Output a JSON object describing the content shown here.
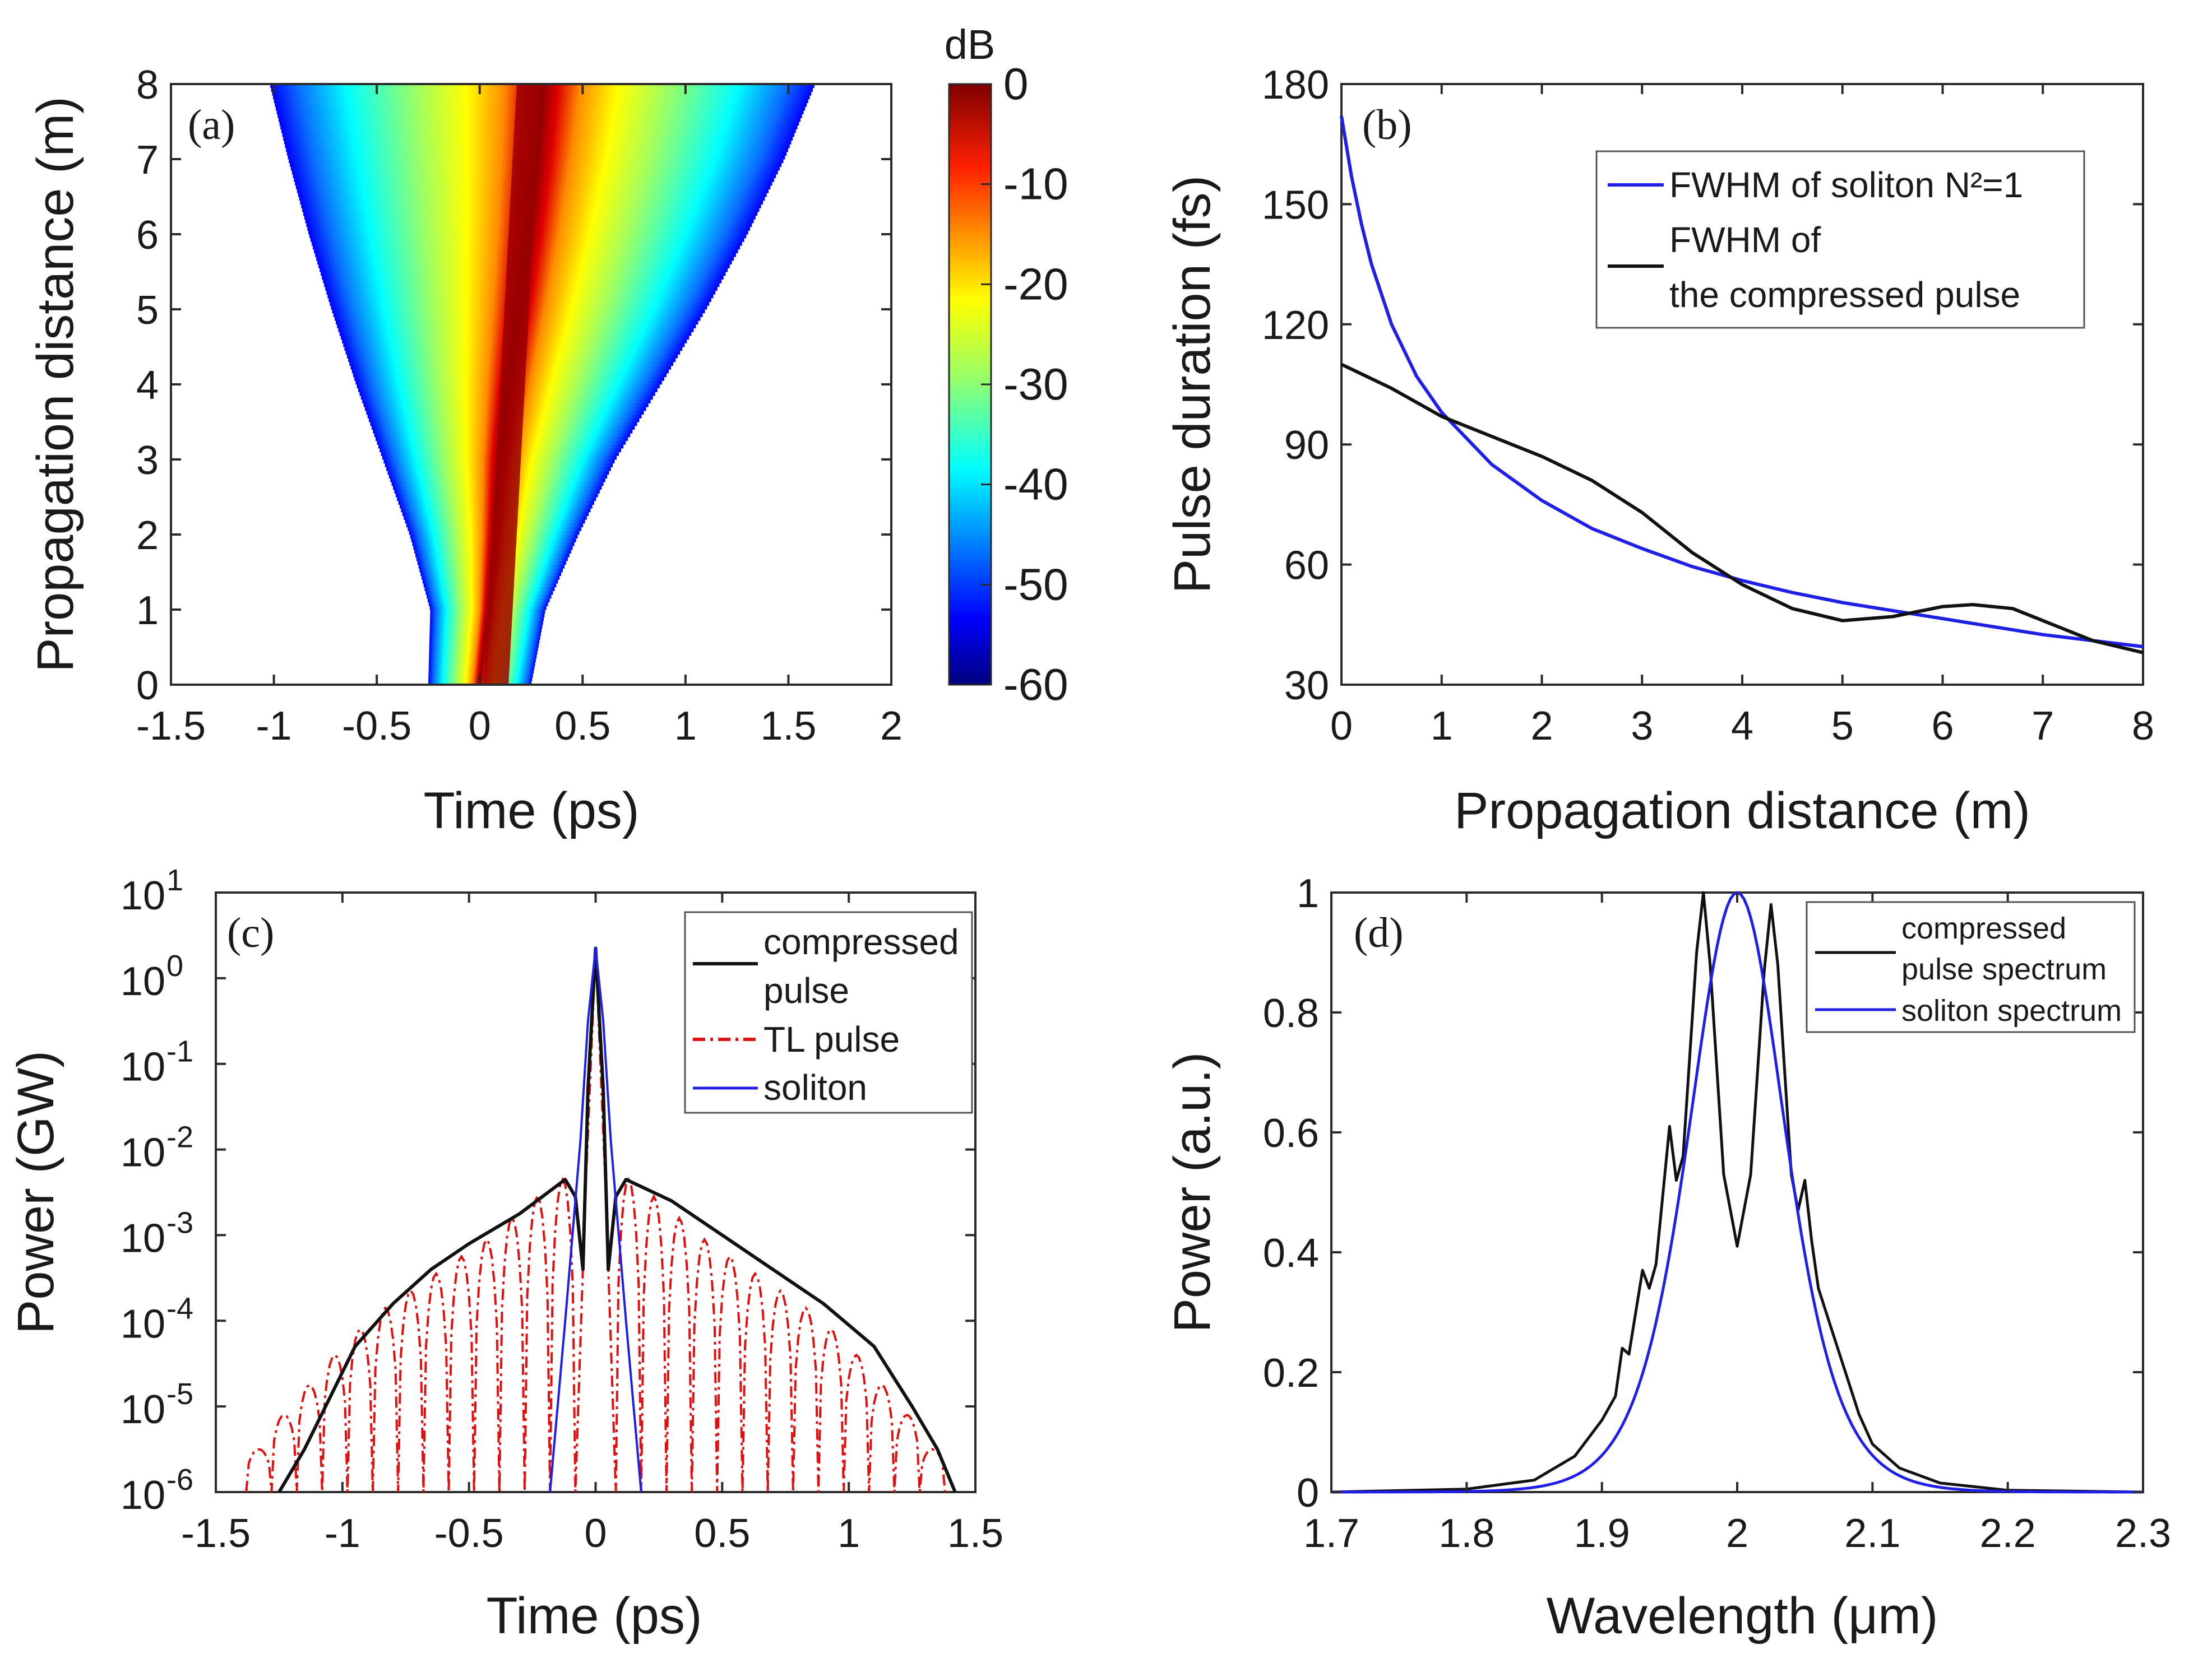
{
  "colors": {
    "blue": "#1f1fe6",
    "black": "#111111",
    "red": "#e01010",
    "axis": "#2a2a2a"
  },
  "chart_data": [
    {
      "id": "a",
      "type": "heatmap",
      "panel_label": "(a)",
      "xlabel": "Time (ps)",
      "ylabel": "Propagation distance (m)",
      "xlim": [
        -1.5,
        2
      ],
      "ylim": [
        0,
        8
      ],
      "xticks": [
        "-1.5",
        "-1",
        "-0.5",
        "0",
        "0.5",
        "1",
        "1.5",
        "2"
      ],
      "yticks": [
        "0",
        "1",
        "2",
        "3",
        "4",
        "5",
        "6",
        "7",
        "8"
      ],
      "colorbar": {
        "title": "dB",
        "range": [
          -60,
          0
        ],
        "ticks": [
          "0",
          "-10",
          "-20",
          "-30",
          "-40",
          "-50",
          "-60"
        ]
      },
      "field_edges": {
        "z": [
          0,
          1,
          2,
          3,
          4,
          5,
          6,
          7,
          8
        ],
        "left": [
          -0.25,
          -0.24,
          -0.34,
          -0.47,
          -0.6,
          -0.72,
          -0.83,
          -0.93,
          -1.02
        ],
        "right": [
          0.25,
          0.32,
          0.48,
          0.66,
          0.88,
          1.1,
          1.3,
          1.48,
          1.63
        ]
      },
      "core": {
        "center_start": 0.08,
        "center_end": 0.24,
        "width_ps": 0.12
      }
    },
    {
      "id": "b",
      "type": "line",
      "panel_label": "(b)",
      "xlabel": "Propagation distance (m)",
      "ylabel": "Pulse duration (fs)",
      "xlim": [
        0,
        8
      ],
      "ylim": [
        30,
        180
      ],
      "xticks": [
        "0",
        "1",
        "2",
        "3",
        "4",
        "5",
        "6",
        "7",
        "8"
      ],
      "yticks": [
        "30",
        "60",
        "90",
        "120",
        "150",
        "180"
      ],
      "legend": {
        "position": "top-right",
        "entries": [
          "FWHM of soliton N²=1",
          "FWHM of",
          "the compressed pulse"
        ]
      },
      "series": [
        {
          "name": "FWHM of soliton N²=1",
          "color": "blue",
          "x": [
            0,
            0.1,
            0.2,
            0.3,
            0.5,
            0.75,
            1,
            1.5,
            2,
            2.5,
            3,
            3.5,
            4,
            4.5,
            5,
            5.5,
            6,
            6.5,
            7,
            7.5,
            8
          ],
          "y": [
            172,
            157,
            145,
            135,
            120,
            107,
            98,
            85,
            76,
            69,
            64,
            59.5,
            56,
            53,
            50.5,
            48.5,
            46.5,
            44.5,
            42.5,
            41,
            39.5
          ]
        },
        {
          "name": "FWHM of the compressed pulse",
          "color": "black",
          "x": [
            0,
            0.5,
            1,
            1.5,
            2,
            2.5,
            3,
            3.5,
            4,
            4.5,
            5,
            5.5,
            6,
            6.3,
            6.7,
            7,
            7.5,
            8
          ],
          "y": [
            110,
            104,
            97,
            92,
            87,
            81,
            73,
            63,
            55,
            49,
            46,
            47,
            49.5,
            50,
            49,
            46,
            41,
            38
          ]
        }
      ]
    },
    {
      "id": "c",
      "type": "line",
      "panel_label": "(c)",
      "yscale": "log",
      "xlabel": "Time (ps)",
      "ylabel": "Power (GW)",
      "xlim": [
        -1.5,
        1.5
      ],
      "ylim_exp": [
        -6,
        1
      ],
      "xticks": [
        "-1.5",
        "-1",
        "-0.5",
        "0",
        "0.5",
        "1",
        "1.5"
      ],
      "ytick_exponents": [
        "1",
        "0",
        "-1",
        "-2",
        "-3",
        "-4",
        "-5",
        "-6"
      ],
      "legend": {
        "position": "top-right",
        "entries": [
          "compressed",
          "pulse",
          "TL pulse",
          "soliton"
        ]
      },
      "series": [
        {
          "name": "compressed pulse",
          "color": "black",
          "units": "log10(P/GW)",
          "x": [
            -1.25,
            -1.15,
            -1.05,
            -0.95,
            -0.8,
            -0.65,
            -0.5,
            -0.3,
            -0.12,
            -0.08,
            -0.05,
            -0.03,
            0,
            0.03,
            0.05,
            0.08,
            0.12,
            0.3,
            0.5,
            0.7,
            0.9,
            1.1,
            1.25,
            1.35,
            1.42
          ],
          "y": [
            -6,
            -5.5,
            -4.9,
            -4.3,
            -3.8,
            -3.4,
            -3.1,
            -2.75,
            -2.35,
            -2.55,
            -3.4,
            -1.3,
            0.35,
            -1.3,
            -3.4,
            -2.55,
            -2.35,
            -2.6,
            -3.0,
            -3.4,
            -3.8,
            -4.3,
            -5.0,
            -5.5,
            -6
          ]
        },
        {
          "name": "TL pulse",
          "color": "red",
          "style": "dashdot",
          "units": "log10(P/GW)",
          "lobe_tops": [
            -5.5,
            -5.1,
            -4.75,
            -4.4,
            -4.1,
            -3.85,
            -3.65,
            -3.45,
            -3.25,
            -3.05,
            -2.8,
            -2.55,
            -2.35,
            -2.35,
            -2.55,
            -2.8,
            -3.05,
            -3.25,
            -3.45,
            -3.65,
            -3.85,
            -4.1,
            -4.4,
            -4.75,
            -5.1,
            -5.5
          ],
          "main_peak": 0.35,
          "floor": -6
        },
        {
          "name": "soliton",
          "color": "blue",
          "units": "log10(P/GW)",
          "x": [
            -0.18,
            -0.12,
            -0.06,
            -0.03,
            0,
            0.03,
            0.06,
            0.12,
            0.18
          ],
          "y": [
            -6,
            -4.0,
            -1.9,
            -0.5,
            0.35,
            -0.5,
            -1.9,
            -4.0,
            -6
          ]
        }
      ]
    },
    {
      "id": "d",
      "type": "line",
      "panel_label": "(d)",
      "xlabel": "Wavelength (μm)",
      "ylabel": "Power (a.u.)",
      "xlim": [
        1.7,
        2.3
      ],
      "ylim": [
        0,
        1
      ],
      "xticks": [
        "1.7",
        "1.8",
        "1.9",
        "2",
        "2.1",
        "2.2",
        "2.3"
      ],
      "yticks": [
        "0",
        "0.2",
        "0.4",
        "0.6",
        "0.8",
        "1"
      ],
      "legend": {
        "position": "top-right",
        "entries": [
          "compressed",
          "pulse spectrum",
          "soliton spectrum"
        ]
      },
      "series": [
        {
          "name": "compressed pulse spectrum",
          "color": "black",
          "x": [
            1.7,
            1.8,
            1.85,
            1.88,
            1.9,
            1.91,
            1.915,
            1.92,
            1.93,
            1.935,
            1.94,
            1.95,
            1.955,
            1.96,
            1.97,
            1.975,
            1.98,
            1.99,
            2.0,
            2.01,
            2.02,
            2.025,
            2.03,
            2.04,
            2.045,
            2.05,
            2.055,
            2.06,
            2.07,
            2.08,
            2.09,
            2.1,
            2.12,
            2.15,
            2.2,
            2.3
          ],
          "y": [
            0,
            0.005,
            0.02,
            0.06,
            0.12,
            0.16,
            0.24,
            0.23,
            0.37,
            0.34,
            0.38,
            0.61,
            0.52,
            0.56,
            0.9,
            1.0,
            0.88,
            0.53,
            0.41,
            0.53,
            0.87,
            0.98,
            0.88,
            0.53,
            0.47,
            0.52,
            0.42,
            0.34,
            0.27,
            0.2,
            0.13,
            0.08,
            0.04,
            0.015,
            0.003,
            0
          ]
        },
        {
          "name": "soliton spectrum",
          "color": "blue",
          "function": "sech2",
          "center": 2.0,
          "fwhm": 0.085,
          "peak": 1.0
        }
      ]
    }
  ]
}
